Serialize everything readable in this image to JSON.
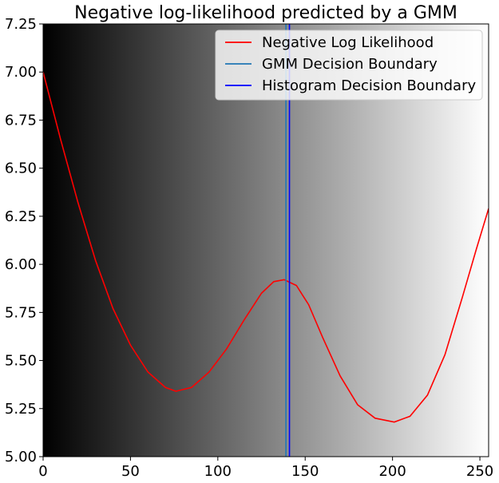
{
  "chart_data": {
    "type": "line",
    "title": "Negative log-likelihood predicted by a GMM",
    "xlabel": "",
    "ylabel": "",
    "xlim": [
      0,
      255
    ],
    "ylim": [
      5.0,
      7.25
    ],
    "x_ticks": [
      0,
      50,
      100,
      150,
      200,
      250
    ],
    "y_ticks": [
      5.0,
      5.25,
      5.5,
      5.75,
      6.0,
      6.25,
      6.5,
      6.75,
      7.0,
      7.25
    ],
    "y_tick_labels": [
      "5.00",
      "5.25",
      "5.50",
      "5.75",
      "6.00",
      "6.25",
      "6.50",
      "6.75",
      "7.00",
      "7.25"
    ],
    "background": "grayscale gradient from black (x=0) to white (x=255)",
    "legend_position": "top-right",
    "grid": false,
    "series": [
      {
        "name": "Negative Log Likelihood",
        "color": "#ff0000",
        "x": [
          0,
          10,
          20,
          30,
          40,
          50,
          60,
          70,
          76,
          85,
          95,
          105,
          115,
          125,
          132,
          138,
          145,
          152,
          160,
          170,
          180,
          190,
          201,
          210,
          220,
          230,
          240,
          248,
          255
        ],
        "y": [
          7.0,
          6.65,
          6.32,
          6.02,
          5.77,
          5.58,
          5.44,
          5.36,
          5.34,
          5.36,
          5.44,
          5.56,
          5.71,
          5.85,
          5.91,
          5.92,
          5.89,
          5.79,
          5.62,
          5.42,
          5.27,
          5.2,
          5.18,
          5.21,
          5.32,
          5.53,
          5.83,
          6.08,
          6.29
        ]
      },
      {
        "name": "GMM Decision Boundary",
        "color": "#1f77b4",
        "x": [
          139,
          139
        ],
        "y": [
          5.0,
          7.25
        ]
      },
      {
        "name": "Histogram Decision Boundary",
        "color": "#0000ff",
        "x": [
          141,
          141
        ],
        "y": [
          5.0,
          7.25
        ]
      }
    ]
  }
}
